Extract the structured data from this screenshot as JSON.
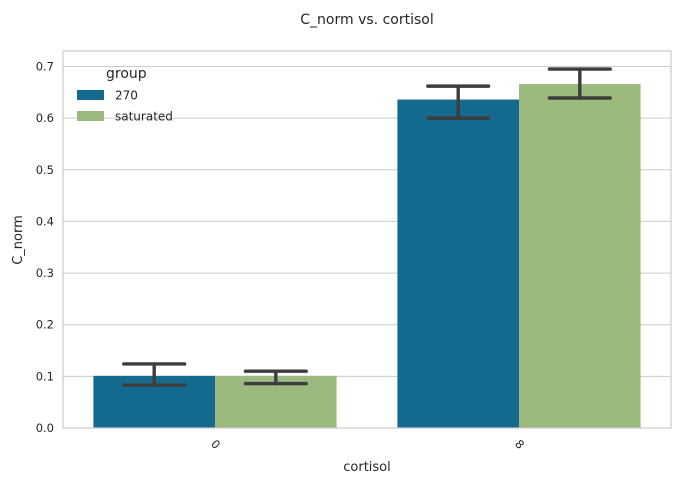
{
  "chart_data": {
    "type": "bar",
    "title": "C_norm vs. cortisol",
    "xlabel": "cortisol",
    "ylabel": "C_norm",
    "categories": [
      "0",
      "8"
    ],
    "ylim": [
      0,
      0.73
    ],
    "yticks": [
      "0.0",
      "0.1",
      "0.2",
      "0.3",
      "0.4",
      "0.5",
      "0.6",
      "0.7"
    ],
    "grid": true,
    "legend": {
      "title": "group",
      "placement": "top-left"
    },
    "series": [
      {
        "name": "270",
        "color": "#146b8f",
        "values": [
          0.101,
          0.636
        ],
        "err_low": [
          0.083,
          0.6
        ],
        "err_high": [
          0.124,
          0.662
        ]
      },
      {
        "name": "saturated",
        "color": "#9dba7e",
        "values": [
          0.101,
          0.666
        ],
        "err_low": [
          0.086,
          0.639
        ],
        "err_high": [
          0.11,
          0.695
        ]
      }
    ]
  }
}
